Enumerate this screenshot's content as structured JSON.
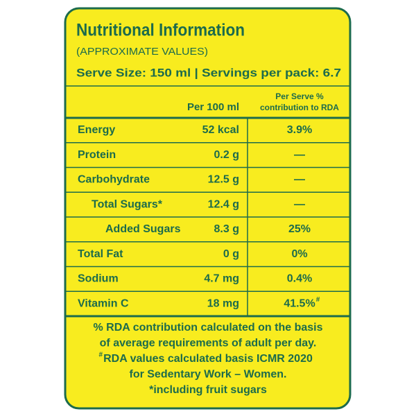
{
  "header": {
    "title": "Nutritional Information",
    "subtitle": "(APPROXIMATE VALUES)",
    "serve": "Serve Size: 150 ml | Servings per pack: 6.7"
  },
  "table": {
    "columns": [
      "Per 100 ml",
      "Per Serve %",
      "contribution to RDA"
    ],
    "rows": [
      {
        "name": "Energy",
        "per100": "52 kcal",
        "rda": "3.9%",
        "indent": 0
      },
      {
        "name": "Protein",
        "per100": "0.2 g",
        "rda": "—",
        "indent": 0
      },
      {
        "name": "Carbohydrate",
        "per100": "12.5 g",
        "rda": "—",
        "indent": 0
      },
      {
        "name": "Total Sugars*",
        "per100": "12.4 g",
        "rda": "—",
        "indent": 1
      },
      {
        "name": "Added Sugars",
        "per100": "8.3 g",
        "rda": "25%",
        "indent": 2
      },
      {
        "name": "Total Fat",
        "per100": "0 g",
        "rda": "0%",
        "indent": 0
      },
      {
        "name": "Sodium",
        "per100": "4.7 mg",
        "rda": "0.4%",
        "indent": 0
      },
      {
        "name": "Vitamin C",
        "per100": "18 mg",
        "rda": "41.5%",
        "rda_mark": "#",
        "indent": 0
      }
    ]
  },
  "footnotes": [
    {
      "text": "% RDA contribution calculated on the basis"
    },
    {
      "text": "of average requirements of adult per day."
    },
    {
      "mark": "#",
      "text": "RDA values calculated basis ICMR 2020"
    },
    {
      "text": "for Sedentary Work – Women."
    },
    {
      "text": "*including fruit sugars"
    }
  ]
}
